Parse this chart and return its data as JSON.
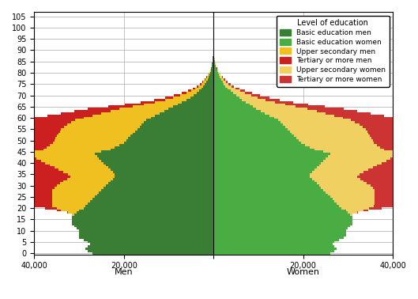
{
  "ages": [
    0,
    1,
    2,
    3,
    4,
    5,
    6,
    7,
    8,
    9,
    10,
    11,
    12,
    13,
    14,
    15,
    16,
    17,
    18,
    19,
    20,
    21,
    22,
    23,
    24,
    25,
    26,
    27,
    28,
    29,
    30,
    31,
    32,
    33,
    34,
    35,
    36,
    37,
    38,
    39,
    40,
    41,
    42,
    43,
    44,
    45,
    46,
    47,
    48,
    49,
    50,
    51,
    52,
    53,
    54,
    55,
    56,
    57,
    58,
    59,
    60,
    61,
    62,
    63,
    64,
    65,
    66,
    67,
    68,
    69,
    70,
    71,
    72,
    73,
    74,
    75,
    76,
    77,
    78,
    79,
    80,
    81,
    82,
    83,
    84,
    85,
    86,
    87,
    88,
    89,
    90,
    91,
    92,
    93,
    94,
    95,
    96,
    97,
    98,
    99,
    100,
    101,
    102,
    103,
    104,
    105
  ],
  "men_basic": [
    27000,
    28000,
    28500,
    28000,
    27500,
    28000,
    29000,
    30000,
    30000,
    30000,
    30000,
    30500,
    31000,
    31500,
    31500,
    31500,
    31500,
    31000,
    30500,
    30000,
    29000,
    28500,
    28000,
    27500,
    27000,
    26500,
    26000,
    25500,
    25000,
    24500,
    24000,
    23500,
    23000,
    22500,
    22000,
    22000,
    22500,
    23000,
    23500,
    24000,
    24500,
    25000,
    25500,
    26000,
    26500,
    25000,
    23000,
    22000,
    21000,
    20000,
    19500,
    19000,
    18500,
    18000,
    17500,
    17000,
    16500,
    16000,
    15500,
    15000,
    14000,
    13000,
    12000,
    11000,
    10000,
    9000,
    8000,
    7000,
    6000,
    5200,
    4500,
    3800,
    3200,
    2700,
    2300,
    1900,
    1600,
    1350,
    1100,
    900,
    750,
    600,
    480,
    380,
    300,
    230,
    170,
    130,
    95,
    70,
    50,
    35,
    24,
    16,
    10,
    6,
    4,
    2,
    1,
    0,
    0,
    0,
    0,
    0,
    0,
    0,
    0
  ],
  "men_upper": [
    0,
    0,
    0,
    0,
    0,
    0,
    0,
    0,
    0,
    0,
    0,
    0,
    0,
    0,
    0,
    0,
    0,
    500,
    2000,
    4000,
    6000,
    7500,
    8000,
    8500,
    9000,
    9500,
    10000,
    10500,
    11000,
    11000,
    11000,
    10800,
    10500,
    10200,
    10000,
    10500,
    11000,
    11500,
    12000,
    12500,
    13000,
    13500,
    14000,
    14500,
    15000,
    15000,
    15000,
    15200,
    15500,
    15800,
    16000,
    16200,
    16400,
    16600,
    16800,
    17000,
    16800,
    16600,
    16200,
    15800,
    15000,
    14000,
    13000,
    12000,
    11000,
    9000,
    7500,
    6000,
    4800,
    3800,
    3000,
    2300,
    1800,
    1400,
    1100,
    850,
    650,
    500,
    380,
    280,
    200,
    140,
    95,
    65,
    43,
    28,
    18,
    11,
    7,
    4,
    2,
    1,
    0,
    0,
    0,
    0,
    0,
    0,
    0,
    0,
    0,
    0,
    0,
    0
  ],
  "men_tertiary": [
    0,
    0,
    0,
    0,
    0,
    0,
    0,
    0,
    0,
    0,
    0,
    0,
    0,
    0,
    0,
    0,
    0,
    0,
    200,
    1000,
    2500,
    4000,
    5500,
    7000,
    8500,
    10000,
    11500,
    12000,
    12500,
    13000,
    13500,
    14000,
    14200,
    14500,
    14800,
    15000,
    15200,
    15500,
    15800,
    16000,
    16200,
    16500,
    16800,
    17000,
    17200,
    17000,
    16800,
    16500,
    16200,
    16000,
    15800,
    15500,
    15200,
    15000,
    14500,
    14000,
    13500,
    13000,
    12500,
    12000,
    11000,
    10000,
    9000,
    8000,
    7000,
    5500,
    4200,
    3200,
    2400,
    1800,
    1300,
    950,
    700,
    520,
    370,
    260,
    180,
    120,
    80,
    52,
    33,
    20,
    12,
    7,
    4,
    2,
    1,
    0,
    0,
    0,
    0,
    0,
    0,
    0,
    0,
    0,
    0,
    0,
    0,
    0,
    0
  ],
  "women_basic": [
    26000,
    27000,
    27500,
    27000,
    26500,
    27000,
    28000,
    29000,
    29500,
    29500,
    29500,
    30000,
    30500,
    31000,
    31000,
    31000,
    31000,
    30500,
    30000,
    29500,
    28500,
    28000,
    27500,
    27000,
    26500,
    26000,
    25500,
    25000,
    24500,
    24000,
    23500,
    23000,
    22500,
    22000,
    21500,
    21500,
    22000,
    22500,
    23000,
    23500,
    24000,
    24500,
    25000,
    25500,
    26000,
    24500,
    22500,
    21500,
    20500,
    19500,
    19000,
    18500,
    18000,
    17500,
    17000,
    16500,
    16000,
    15500,
    15000,
    14500,
    13500,
    12500,
    11500,
    10500,
    9500,
    8800,
    8000,
    7200,
    6400,
    5700,
    5100,
    4400,
    3800,
    3200,
    2700,
    2300,
    2000,
    1700,
    1400,
    1150,
    950,
    770,
    610,
    480,
    375,
    285,
    215,
    160,
    115,
    82,
    57,
    38,
    25,
    16,
    10,
    6,
    3,
    2,
    1,
    0,
    0,
    0,
    0,
    0,
    0,
    0
  ],
  "women_upper": [
    0,
    0,
    0,
    0,
    0,
    0,
    0,
    0,
    0,
    0,
    0,
    0,
    0,
    0,
    0,
    0,
    0,
    500,
    2000,
    4000,
    6200,
    7800,
    8500,
    9000,
    9500,
    10000,
    10500,
    11000,
    11500,
    11500,
    11500,
    11200,
    11000,
    10700,
    10500,
    11000,
    11500,
    12000,
    12500,
    13000,
    13500,
    14000,
    14500,
    15000,
    15500,
    15500,
    15500,
    15700,
    16000,
    16300,
    16500,
    16700,
    16900,
    17100,
    17300,
    17500,
    17300,
    17000,
    16600,
    16200,
    15400,
    14500,
    13500,
    12500,
    11500,
    9500,
    8000,
    6500,
    5200,
    4200,
    3400,
    2700,
    2100,
    1700,
    1300,
    1050,
    820,
    640,
    490,
    370,
    270,
    190,
    132,
    90,
    60,
    39,
    25,
    15,
    9,
    5,
    3,
    1,
    0,
    0,
    0,
    0,
    0,
    0,
    0,
    0,
    0,
    0,
    0,
    0
  ],
  "women_tertiary": [
    0,
    0,
    0,
    0,
    0,
    0,
    0,
    0,
    0,
    0,
    0,
    0,
    0,
    0,
    0,
    0,
    0,
    0,
    200,
    1000,
    2800,
    4500,
    6000,
    7800,
    9500,
    11000,
    12500,
    13000,
    13500,
    14000,
    14500,
    15000,
    15200,
    15500,
    15800,
    16000,
    16200,
    16500,
    16800,
    17000,
    17200,
    17500,
    17800,
    18000,
    18200,
    18000,
    17800,
    17500,
    17200,
    17000,
    16800,
    16500,
    16200,
    16000,
    15500,
    15000,
    14500,
    14000,
    13500,
    13000,
    12000,
    11000,
    10000,
    9000,
    8000,
    6500,
    5200,
    4100,
    3200,
    2500,
    1900,
    1450,
    1100,
    820,
    600,
    430,
    300,
    210,
    145,
    97,
    63,
    40,
    25,
    15,
    9,
    5,
    3,
    1,
    0,
    0,
    0,
    0,
    0,
    0,
    0,
    0,
    0,
    0,
    0,
    0,
    0,
    0
  ],
  "colors": {
    "men_basic": "#3a7d34",
    "men_upper": "#f0c020",
    "men_tertiary": "#cc2020",
    "women_basic": "#4aad44",
    "women_upper": "#f0d060",
    "women_tertiary": "#cc3333"
  },
  "legend_labels": {
    "men_basic": "Basic education men",
    "women_basic": "Basic education women",
    "men_upper": "Upper secondary men",
    "men_tertiary": "Tertiary or more men",
    "women_upper": "Upper secondary women",
    "women_tertiary": "Tertiary or more women"
  },
  "xlim": 40000,
  "xticks": [
    -40000,
    -20000,
    0,
    20000,
    40000
  ],
  "xticklabels": [
    "40,000",
    "20,000",
    "",
    "20,000",
    "40,000"
  ],
  "bar_height": 1.0,
  "ylim_min": -0.5,
  "ylim_max": 107,
  "yticks": [
    0,
    5,
    10,
    15,
    20,
    25,
    30,
    35,
    40,
    45,
    50,
    55,
    60,
    65,
    70,
    75,
    80,
    85,
    90,
    95,
    100,
    105
  ],
  "xlabel_men": "Men",
  "xlabel_women": "Women",
  "legend_title": "Level of education",
  "background_color": "#ffffff",
  "grid_color": "#aaaaaa"
}
